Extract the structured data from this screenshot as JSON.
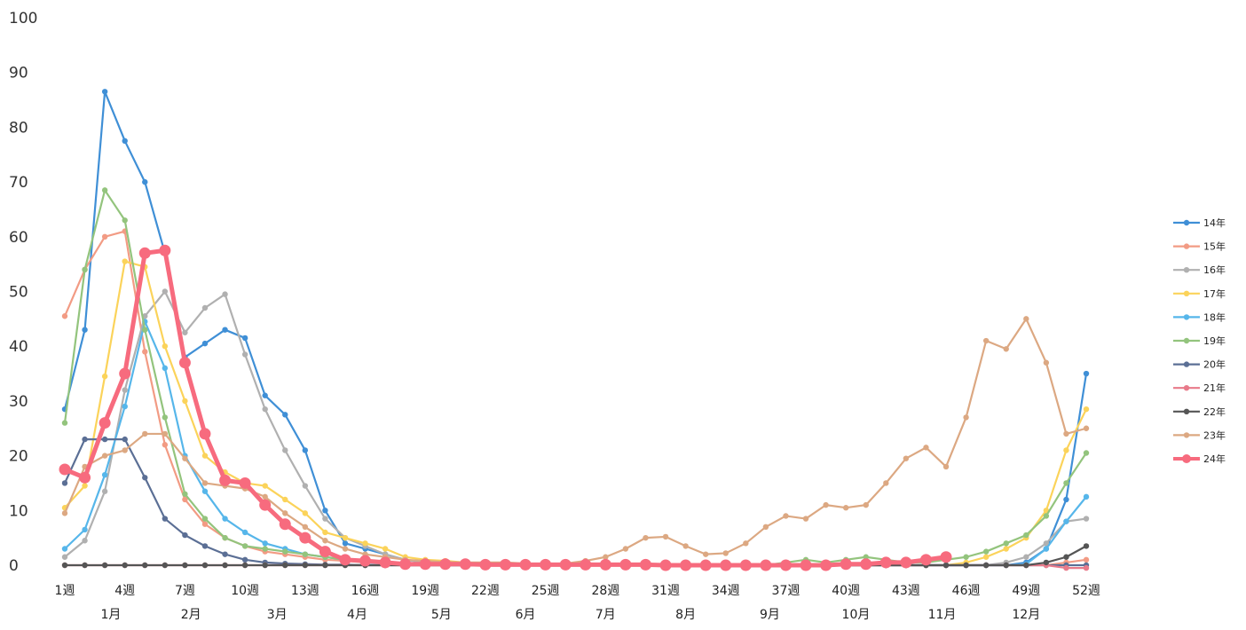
{
  "chart_data": {
    "type": "line",
    "title": "",
    "xlabel": "",
    "ylabel": "",
    "ylim": [
      0,
      100
    ],
    "yticks": [
      0,
      10,
      20,
      30,
      40,
      50,
      60,
      70,
      80,
      90,
      100
    ],
    "xlim": [
      1,
      52
    ],
    "xtick_labels": [
      {
        "week": 1,
        "label": "1週"
      },
      {
        "week": 4,
        "label": "4週"
      },
      {
        "week": 7,
        "label": "7週"
      },
      {
        "week": 10,
        "label": "10週"
      },
      {
        "week": 13,
        "label": "13週"
      },
      {
        "week": 16,
        "label": "16週"
      },
      {
        "week": 19,
        "label": "19週"
      },
      {
        "week": 22,
        "label": "22週"
      },
      {
        "week": 25,
        "label": "25週"
      },
      {
        "week": 28,
        "label": "28週"
      },
      {
        "week": 31,
        "label": "31週"
      },
      {
        "week": 34,
        "label": "34週"
      },
      {
        "week": 37,
        "label": "37週"
      },
      {
        "week": 40,
        "label": "40週"
      },
      {
        "week": 43,
        "label": "43週"
      },
      {
        "week": 46,
        "label": "46週"
      },
      {
        "week": 49,
        "label": "49週"
      },
      {
        "week": 52,
        "label": "52週"
      }
    ],
    "month_labels": [
      {
        "week": 3.3,
        "label": "1月"
      },
      {
        "week": 7.3,
        "label": "2月"
      },
      {
        "week": 11.6,
        "label": "3月"
      },
      {
        "week": 15.6,
        "label": "4月"
      },
      {
        "week": 19.8,
        "label": "5月"
      },
      {
        "week": 24.0,
        "label": "6月"
      },
      {
        "week": 28.0,
        "label": "7月"
      },
      {
        "week": 32.0,
        "label": "8月"
      },
      {
        "week": 36.2,
        "label": "9月"
      },
      {
        "week": 40.5,
        "label": "10月"
      },
      {
        "week": 44.8,
        "label": "11月"
      },
      {
        "week": 49.0,
        "label": "12月"
      }
    ],
    "legend_position": "right",
    "grid": false,
    "series": [
      {
        "name": "14年",
        "color": "#3f8fd6",
        "values": [
          28.5,
          43,
          86.5,
          77.5,
          70,
          57,
          38,
          40.5,
          43,
          41.5,
          31,
          27.5,
          21,
          10,
          4,
          3,
          2,
          1,
          0.5,
          0.3,
          0.2,
          0.1,
          0,
          0,
          0,
          0,
          0,
          0,
          0,
          0,
          0,
          0,
          0,
          0,
          0,
          0,
          0,
          0,
          0,
          0,
          0,
          0,
          0,
          0,
          0,
          0,
          0,
          0,
          0.5,
          3,
          12,
          35
        ]
      },
      {
        "name": "15年",
        "color": "#f29b84",
        "values": [
          45.5,
          54,
          60,
          61,
          39,
          22,
          12,
          7.5,
          5,
          3.5,
          2.5,
          2,
          1.5,
          1,
          0.8,
          0.5,
          0.4,
          0.3,
          0.2,
          0.1,
          0.1,
          0,
          0,
          0,
          0,
          0,
          0,
          0,
          0,
          0,
          0,
          0,
          0,
          0,
          0,
          0,
          0,
          0,
          0,
          0,
          0,
          0,
          0,
          0,
          0,
          0,
          0,
          0,
          0,
          0,
          0.5,
          1
        ]
      },
      {
        "name": "16年",
        "color": "#b0b0b0",
        "values": [
          1.5,
          4.5,
          13.5,
          32,
          45.5,
          50,
          42.5,
          47,
          49.5,
          38.5,
          28.5,
          21,
          14.5,
          8.5,
          5,
          3.5,
          2,
          1,
          0.5,
          0.3,
          0.2,
          0.1,
          0,
          0,
          0,
          0,
          0,
          0,
          0,
          0,
          0,
          0,
          0,
          0,
          0,
          0,
          0,
          0,
          0,
          0,
          0,
          0,
          0,
          0,
          0,
          0,
          0,
          0.5,
          1.5,
          4,
          8,
          8.5
        ]
      },
      {
        "name": "17年",
        "color": "#fbd35a",
        "values": [
          10.5,
          14.5,
          34.5,
          55.5,
          54.5,
          40,
          30,
          20,
          17,
          15,
          14.5,
          12,
          9.5,
          6,
          5,
          4,
          3,
          1.5,
          1,
          0.8,
          0.5,
          0.3,
          0.2,
          0.1,
          0,
          0,
          0,
          0,
          0,
          0,
          0,
          0,
          0,
          0,
          0,
          0,
          0,
          0,
          0,
          0,
          0,
          0,
          0,
          0,
          0,
          0.5,
          1.5,
          3,
          5,
          10,
          21,
          28.5
        ]
      },
      {
        "name": "18年",
        "color": "#56b6ea",
        "values": [
          3,
          6.5,
          16.5,
          29,
          44.5,
          36,
          20,
          13.5,
          8.5,
          6,
          4,
          3,
          2,
          1.5,
          1,
          0.5,
          0.3,
          0.2,
          0.1,
          0,
          0,
          0,
          0,
          0,
          0,
          0,
          0,
          0,
          0,
          0,
          0,
          0,
          0,
          0,
          0,
          0,
          0,
          0,
          0,
          0,
          0,
          0,
          0,
          0,
          0,
          0,
          0,
          0,
          0.2,
          3,
          8,
          12.5
        ]
      },
      {
        "name": "19年",
        "color": "#93c47d",
        "values": [
          26,
          54,
          68.5,
          63,
          43,
          27,
          13,
          8.5,
          5,
          3.5,
          3,
          2.5,
          2,
          1.5,
          1,
          0.8,
          0.5,
          0.4,
          0.3,
          0.2,
          0.1,
          0,
          0,
          0,
          0,
          0,
          0,
          0,
          0,
          0,
          0,
          0,
          0,
          0,
          0,
          0,
          0.5,
          1,
          0.5,
          1,
          1.5,
          1,
          0.5,
          0.5,
          1,
          1.5,
          2.5,
          4,
          5.5,
          9,
          15,
          20.5
        ]
      },
      {
        "name": "20年",
        "color": "#5b6f95",
        "values": [
          15,
          23,
          23,
          23,
          16,
          8.5,
          5.5,
          3.5,
          2,
          1,
          0.5,
          0.3,
          0.2,
          0.1,
          0.1,
          0,
          0,
          0,
          0,
          0,
          0,
          0,
          0,
          0,
          0,
          0,
          0,
          0,
          0,
          0,
          0,
          0,
          0,
          0,
          0,
          0,
          0,
          0,
          0,
          0,
          0,
          0,
          0,
          0,
          0,
          0,
          0,
          0,
          0,
          0,
          0,
          0
        ]
      },
      {
        "name": "21年",
        "color": "#e87a8a",
        "values": [
          0,
          0,
          0,
          0,
          0,
          0,
          0,
          0,
          0,
          0,
          0,
          0,
          0,
          0,
          0,
          0,
          0,
          0,
          0,
          0,
          0,
          0,
          0,
          0,
          0,
          0,
          0,
          0,
          0,
          0,
          0,
          0,
          0,
          0,
          0,
          0,
          0,
          0,
          0,
          0,
          0,
          0,
          0,
          0,
          0,
          0,
          0,
          0,
          0,
          0,
          -0.5,
          -0.5
        ]
      },
      {
        "name": "22年",
        "color": "#555555",
        "values": [
          0,
          0,
          0,
          0,
          0,
          0,
          0,
          0,
          0,
          0,
          0,
          0,
          0,
          0,
          0,
          0,
          0,
          0,
          0,
          0,
          0,
          0,
          0,
          0,
          0,
          0,
          0,
          0,
          0,
          0,
          0,
          0,
          0,
          0,
          0,
          0,
          0,
          0,
          0,
          0,
          0,
          0,
          0,
          0,
          0,
          0,
          0,
          0,
          0,
          0.5,
          1.5,
          3.5
        ]
      },
      {
        "name": "23年",
        "color": "#dca882",
        "values": [
          9.5,
          18,
          20,
          21,
          24,
          24,
          19.5,
          15,
          14.5,
          14,
          12.5,
          9.5,
          7,
          4.5,
          3,
          2,
          1.5,
          1,
          0.8,
          0.6,
          0.5,
          0.5,
          0.5,
          0.3,
          0.2,
          0.3,
          0.8,
          1.5,
          3,
          5,
          5.2,
          3.5,
          2,
          2.2,
          4,
          7,
          9,
          8.5,
          11,
          10.5,
          11,
          15,
          19.5,
          21.5,
          18,
          27,
          41,
          39.5,
          45,
          37,
          24,
          25
        ]
      },
      {
        "name": "24年",
        "color": "#f76b7e",
        "values": [
          17.5,
          16,
          26,
          35,
          57,
          57.5,
          37,
          24,
          15.5,
          15,
          11,
          7.5,
          5,
          2.5,
          1,
          0.8,
          0.5,
          0.2,
          0.2,
          0.2,
          0.2,
          0.1,
          0.1,
          0.1,
          0.1,
          0.1,
          0.1,
          0.1,
          0.1,
          0.1,
          0,
          0,
          0,
          0,
          0,
          0,
          0,
          0,
          0,
          0.2,
          0.2,
          0.5,
          0.5,
          1,
          1.5
        ]
      }
    ]
  }
}
